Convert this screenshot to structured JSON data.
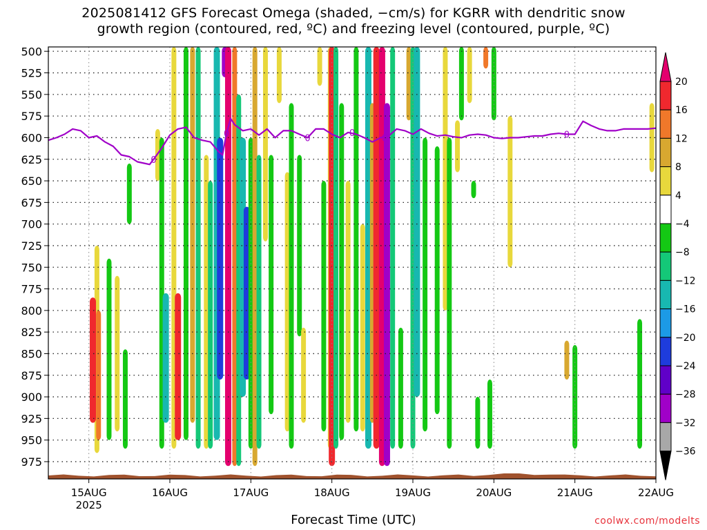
{
  "title_line1": "2025081412 GFS Forecast Omega (shaded, −cm/s) for KGRR with dendritic snow",
  "title_line2": "growth region (contoured, red, ºC) and freezing level (contoured, purple, ºC)",
  "credit": "coolwx.com/modelts",
  "chart_data": {
    "type": "heatmap",
    "title": "2025081412 GFS Forecast Omega (shaded, −cm/s) for KGRR with dendritic snow growth region (contoured, red, ºC) and freezing level (contoured, purple, ºC)",
    "xlabel": "Forecast Time (UTC)",
    "ylabel": "",
    "x_ticks": [
      "15AUG",
      "16AUG",
      "17AUG",
      "18AUG",
      "19AUG",
      "20AUG",
      "21AUG",
      "22AUG"
    ],
    "x_year": "2025",
    "x_range_days": [
      14.5,
      22.0
    ],
    "y_ticks": [
      500,
      525,
      550,
      575,
      600,
      625,
      650,
      675,
      700,
      725,
      750,
      775,
      800,
      825,
      850,
      875,
      900,
      925,
      950,
      975
    ],
    "y_range": [
      495,
      995
    ],
    "colorbar_labels": [
      "20",
      "16",
      "12",
      "8",
      "4",
      "−4",
      "−8",
      "−12",
      "−16",
      "−20",
      "−24",
      "−28",
      "−32",
      "−36"
    ],
    "colorbar_colors": [
      "#e4006e",
      "#f0282e",
      "#f0782a",
      "#d8a830",
      "#e8d83c",
      "#ffffff",
      "#14c814",
      "#14c878",
      "#18b8b0",
      "#1c9ae6",
      "#1e3cdc",
      "#6000c8",
      "#a000c8",
      "#a8a8a8"
    ],
    "grid": true,
    "freezing_level": {
      "label": "0",
      "color": "#a000c8",
      "days": [
        14.5,
        14.6,
        14.7,
        14.8,
        14.9,
        15.0,
        15.1,
        15.2,
        15.3,
        15.4,
        15.5,
        15.6,
        15.7,
        15.75,
        15.8,
        15.9,
        16.0,
        16.1,
        16.2,
        16.3,
        16.4,
        16.5,
        16.6,
        16.65,
        16.7,
        16.75,
        16.8,
        16.9,
        17.0,
        17.1,
        17.2,
        17.3,
        17.4,
        17.5,
        17.6,
        17.7,
        17.8,
        17.9,
        18.0,
        18.1,
        18.2,
        18.3,
        18.4,
        18.5,
        18.6,
        18.7,
        18.8,
        18.9,
        19.0,
        19.1,
        19.2,
        19.3,
        19.4,
        19.5,
        19.6,
        19.7,
        19.8,
        19.9,
        20.0,
        20.1,
        20.2,
        20.3,
        20.4,
        20.5,
        20.6,
        20.7,
        20.8,
        20.9,
        21.0,
        21.1,
        21.2,
        21.3,
        21.4,
        21.5,
        21.6,
        21.7,
        21.8,
        21.9,
        22.0
      ],
      "levels": [
        603,
        600,
        596,
        590,
        592,
        600,
        598,
        605,
        610,
        620,
        622,
        628,
        630,
        631,
        625,
        612,
        597,
        590,
        588,
        600,
        603,
        605,
        616,
        620,
        595,
        578,
        585,
        592,
        590,
        597,
        590,
        600,
        592,
        592,
        596,
        600,
        590,
        590,
        596,
        600,
        594,
        596,
        600,
        605,
        600,
        598,
        590,
        592,
        596,
        590,
        595,
        598,
        597,
        599,
        600,
        597,
        596,
        597,
        600,
        601,
        600,
        600,
        599,
        598,
        598,
        596,
        595,
        596,
        596,
        581,
        586,
        590,
        592,
        592,
        590,
        590,
        590,
        590,
        589
      ]
    },
    "omega_bands": [
      {
        "day": 15.1,
        "top": 725,
        "bottom": 965,
        "value": 4
      },
      {
        "day": 15.12,
        "top": 800,
        "bottom": 950,
        "value": 8
      },
      {
        "day": 15.05,
        "top": 785,
        "bottom": 930,
        "value": 12
      },
      {
        "day": 15.25,
        "top": 740,
        "bottom": 950,
        "value": -6
      },
      {
        "day": 15.35,
        "top": 760,
        "bottom": 940,
        "value": 5
      },
      {
        "day": 15.45,
        "top": 845,
        "bottom": 960,
        "value": -6
      },
      {
        "day": 15.5,
        "top": 630,
        "bottom": 700,
        "value": -6
      },
      {
        "day": 15.85,
        "top": 590,
        "bottom": 650,
        "value": 4
      },
      {
        "day": 15.9,
        "top": 600,
        "bottom": 960,
        "value": -6
      },
      {
        "day": 15.95,
        "top": 780,
        "bottom": 930,
        "value": -14
      },
      {
        "day": 16.05,
        "top": 495,
        "bottom": 960,
        "value": 5
      },
      {
        "day": 16.1,
        "top": 780,
        "bottom": 950,
        "value": 12
      },
      {
        "day": 16.2,
        "top": 495,
        "bottom": 950,
        "value": -6
      },
      {
        "day": 16.28,
        "top": 495,
        "bottom": 930,
        "value": 6
      },
      {
        "day": 16.35,
        "top": 495,
        "bottom": 960,
        "value": -8
      },
      {
        "day": 16.45,
        "top": 620,
        "bottom": 960,
        "value": 5
      },
      {
        "day": 16.5,
        "top": 650,
        "bottom": 960,
        "value": -10
      },
      {
        "day": 16.58,
        "top": 495,
        "bottom": 950,
        "value": -14
      },
      {
        "day": 16.62,
        "top": 600,
        "bottom": 880,
        "value": -20
      },
      {
        "day": 16.68,
        "top": 495,
        "bottom": 530,
        "value": -28
      },
      {
        "day": 16.72,
        "top": 495,
        "bottom": 980,
        "value": 20
      },
      {
        "day": 16.8,
        "top": 495,
        "bottom": 980,
        "value": 10
      },
      {
        "day": 16.85,
        "top": 550,
        "bottom": 980,
        "value": -8
      },
      {
        "day": 16.9,
        "top": 600,
        "bottom": 900,
        "value": -14
      },
      {
        "day": 16.95,
        "top": 680,
        "bottom": 880,
        "value": -20
      },
      {
        "day": 17.0,
        "top": 600,
        "bottom": 960,
        "value": -6
      },
      {
        "day": 17.05,
        "top": 495,
        "bottom": 980,
        "value": 6
      },
      {
        "day": 17.1,
        "top": 620,
        "bottom": 960,
        "value": -8
      },
      {
        "day": 17.18,
        "top": 495,
        "bottom": 720,
        "value": 5
      },
      {
        "day": 17.25,
        "top": 620,
        "bottom": 920,
        "value": -6
      },
      {
        "day": 17.35,
        "top": 495,
        "bottom": 560,
        "value": 5
      },
      {
        "day": 17.45,
        "top": 640,
        "bottom": 940,
        "value": 5
      },
      {
        "day": 17.5,
        "top": 560,
        "bottom": 960,
        "value": -6
      },
      {
        "day": 17.6,
        "top": 620,
        "bottom": 830,
        "value": -6
      },
      {
        "day": 17.65,
        "top": 820,
        "bottom": 930,
        "value": 5
      },
      {
        "day": 17.85,
        "top": 495,
        "bottom": 540,
        "value": 5
      },
      {
        "day": 17.9,
        "top": 650,
        "bottom": 940,
        "value": -6
      },
      {
        "day": 17.98,
        "top": 495,
        "bottom": 960,
        "value": 5
      },
      {
        "day": 18.0,
        "top": 495,
        "bottom": 980,
        "value": 14
      },
      {
        "day": 18.05,
        "top": 495,
        "bottom": 960,
        "value": -10
      },
      {
        "day": 18.12,
        "top": 560,
        "bottom": 950,
        "value": -6
      },
      {
        "day": 18.2,
        "top": 650,
        "bottom": 930,
        "value": 5
      },
      {
        "day": 18.3,
        "top": 495,
        "bottom": 940,
        "value": -6
      },
      {
        "day": 18.38,
        "top": 700,
        "bottom": 940,
        "value": 5
      },
      {
        "day": 18.45,
        "top": 495,
        "bottom": 960,
        "value": -14
      },
      {
        "day": 18.5,
        "top": 560,
        "bottom": 930,
        "value": 6
      },
      {
        "day": 18.55,
        "top": 495,
        "bottom": 960,
        "value": 14
      },
      {
        "day": 18.62,
        "top": 495,
        "bottom": 980,
        "value": 20
      },
      {
        "day": 18.68,
        "top": 560,
        "bottom": 980,
        "value": -28
      },
      {
        "day": 18.75,
        "top": 495,
        "bottom": 960,
        "value": -10
      },
      {
        "day": 18.85,
        "top": 820,
        "bottom": 960,
        "value": -6
      },
      {
        "day": 18.95,
        "top": 495,
        "bottom": 580,
        "value": 6
      },
      {
        "day": 19.0,
        "top": 495,
        "bottom": 960,
        "value": -8
      },
      {
        "day": 19.05,
        "top": 495,
        "bottom": 900,
        "value": -14
      },
      {
        "day": 19.15,
        "top": 600,
        "bottom": 940,
        "value": -6
      },
      {
        "day": 19.3,
        "top": 610,
        "bottom": 920,
        "value": -6
      },
      {
        "day": 19.4,
        "top": 495,
        "bottom": 800,
        "value": 5
      },
      {
        "day": 19.45,
        "top": 600,
        "bottom": 960,
        "value": -6
      },
      {
        "day": 19.55,
        "top": 580,
        "bottom": 640,
        "value": 5
      },
      {
        "day": 19.6,
        "top": 495,
        "bottom": 580,
        "value": -6
      },
      {
        "day": 19.7,
        "top": 495,
        "bottom": 560,
        "value": 5
      },
      {
        "day": 19.75,
        "top": 650,
        "bottom": 670,
        "value": -6
      },
      {
        "day": 19.8,
        "top": 900,
        "bottom": 960,
        "value": -6
      },
      {
        "day": 19.9,
        "top": 495,
        "bottom": 520,
        "value": 10
      },
      {
        "day": 19.95,
        "top": 880,
        "bottom": 960,
        "value": -6
      },
      {
        "day": 20.2,
        "top": 575,
        "bottom": 750,
        "value": 5
      },
      {
        "day": 20.0,
        "top": 495,
        "bottom": 580,
        "value": -6
      },
      {
        "day": 20.9,
        "top": 835,
        "bottom": 880,
        "value": 6
      },
      {
        "day": 21.0,
        "top": 840,
        "bottom": 960,
        "value": -6
      },
      {
        "day": 21.8,
        "top": 810,
        "bottom": 960,
        "value": -6
      },
      {
        "day": 21.95,
        "top": 560,
        "bottom": 640,
        "value": 5
      }
    ],
    "terrain_color": "#a0522d"
  }
}
